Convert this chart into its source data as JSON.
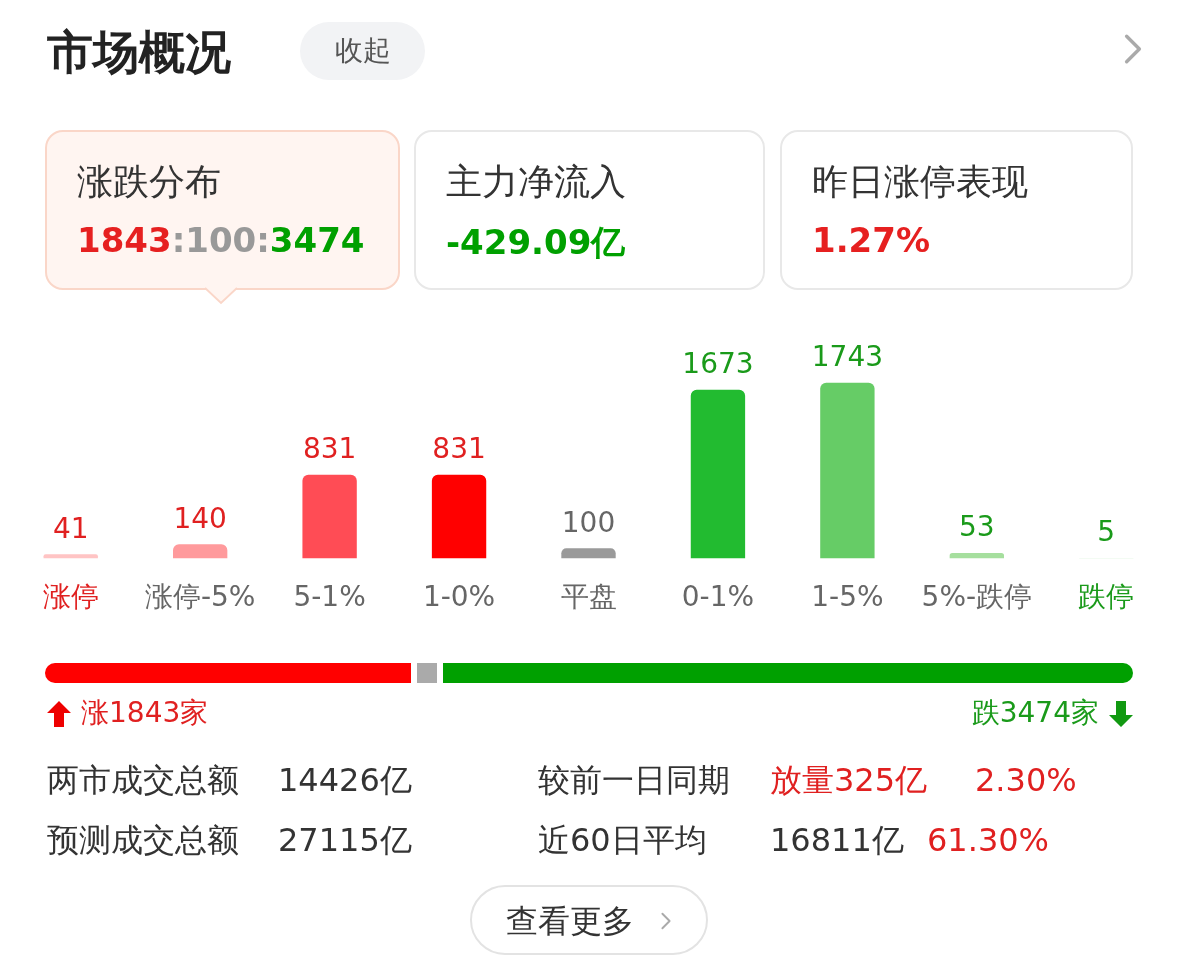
{
  "chart_data": [
    {
      "type": "other",
      "title": "市场概况",
      "annotations": [
        "收起",
        "涨跌分布",
        "1843:100:3474",
        "主力净流入",
        "-429.09亿",
        "昨日涨停表现",
        "1.27%"
      ]
    },
    {
      "type": "bar",
      "categories": [
        "涨停",
        "涨停-5%",
        "5-1%",
        "1-0%",
        "平盘",
        "0-1%",
        "1-5%",
        "5%-跌停",
        "跌停"
      ],
      "values": [
        41,
        140,
        831,
        831,
        100,
        1673,
        1743,
        53,
        5
      ],
      "colors": [
        "#ffc4c4",
        "#ff9a9c",
        "#ff4c55",
        "#ff0000",
        "#9a9a9a",
        "#22bb30",
        "#66cc66",
        "#a6df9e",
        "#cdeecd"
      ],
      "data_labels": true,
      "tick_labels": "x"
    },
    {
      "type": "other",
      "annotations": [
        "涨1843家",
        "跌3474家",
        "两市成交总额",
        "14426亿",
        "较前一日同期",
        "放量325亿",
        "2.30%",
        "预测成交总额",
        "27115亿",
        "近60日平均",
        "16811亿",
        "61.30%",
        "查看更多"
      ]
    }
  ]
}
